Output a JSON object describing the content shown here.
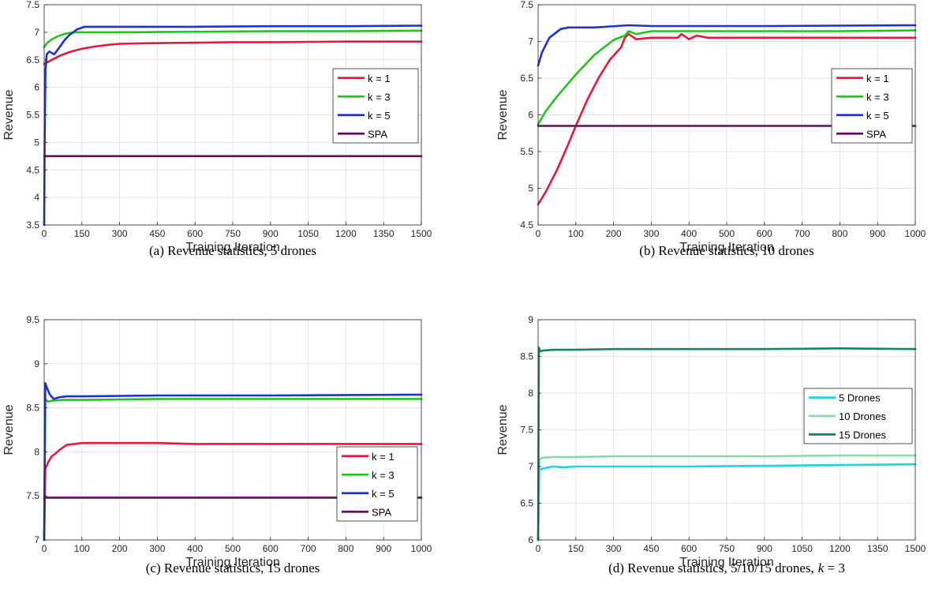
{
  "chart_data": [
    {
      "type": "line",
      "caption": "(a) Revenue statistics, 5 drones",
      "xlabel": "Training Iteration",
      "ylabel": "Revenue",
      "xlim": [
        0,
        1500
      ],
      "ylim": [
        3.5,
        7.5
      ],
      "xticks": [
        0,
        150,
        300,
        450,
        600,
        750,
        900,
        1050,
        1200,
        1350,
        1500
      ],
      "yticks": [
        3.5,
        4,
        4.5,
        5,
        5.5,
        6,
        6.5,
        7,
        7.5
      ],
      "grid": true,
      "legend_position": "right",
      "series": [
        {
          "name": "k = 1",
          "color": "#e8173c",
          "x": [
            0,
            30,
            60,
            100,
            150,
            200,
            250,
            300,
            400,
            600,
            750,
            900,
            1200,
            1500
          ],
          "y": [
            6.42,
            6.5,
            6.57,
            6.64,
            6.7,
            6.74,
            6.77,
            6.79,
            6.8,
            6.81,
            6.82,
            6.82,
            6.83,
            6.83
          ]
        },
        {
          "name": "k = 3",
          "color": "#22c51c",
          "x": [
            0,
            10,
            30,
            60,
            90,
            120,
            150,
            200,
            300,
            600,
            900,
            1200,
            1500
          ],
          "y": [
            6.73,
            6.8,
            6.87,
            6.94,
            6.98,
            7.0,
            7.0,
            7.0,
            7.0,
            7.01,
            7.02,
            7.02,
            7.03
          ]
        },
        {
          "name": "k = 5",
          "color": "#1f2fdc",
          "x": [
            0,
            2,
            5,
            10,
            20,
            40,
            60,
            80,
            100,
            130,
            160,
            200,
            300,
            600,
            900,
            1200,
            1500
          ],
          "y": [
            3.5,
            5.0,
            6.3,
            6.6,
            6.65,
            6.6,
            6.72,
            6.85,
            6.95,
            7.05,
            7.1,
            7.1,
            7.1,
            7.1,
            7.11,
            7.11,
            7.12
          ]
        },
        {
          "name": "SPA",
          "color": "#5e0f5e",
          "x": [
            0,
            1500
          ],
          "y": [
            4.75,
            4.75
          ]
        }
      ]
    },
    {
      "type": "line",
      "caption": "(b) Revenue statistics, 10 drones",
      "xlabel": "Training Iteration",
      "ylabel": "Revenue",
      "xlim": [
        0,
        1000
      ],
      "ylim": [
        4.5,
        7.5
      ],
      "xticks": [
        0,
        100,
        200,
        300,
        400,
        500,
        600,
        700,
        800,
        900,
        1000
      ],
      "yticks": [
        4.5,
        5,
        5.5,
        6,
        6.5,
        7,
        7.5
      ],
      "grid": true,
      "legend_position": "right",
      "series": [
        {
          "name": "k = 1",
          "color": "#e8173c",
          "x": [
            0,
            20,
            50,
            80,
            100,
            130,
            160,
            190,
            220,
            230,
            240,
            260,
            300,
            370,
            380,
            400,
            420,
            450,
            600,
            1000
          ],
          "y": [
            4.78,
            4.95,
            5.25,
            5.6,
            5.85,
            6.2,
            6.5,
            6.75,
            6.92,
            7.05,
            7.1,
            7.03,
            7.05,
            7.05,
            7.1,
            7.03,
            7.08,
            7.05,
            7.05,
            7.05
          ]
        },
        {
          "name": "k = 3",
          "color": "#22c51c",
          "x": [
            0,
            20,
            50,
            100,
            150,
            200,
            230,
            240,
            260,
            300,
            500,
            800,
            1000
          ],
          "y": [
            5.87,
            6.05,
            6.25,
            6.55,
            6.82,
            7.02,
            7.08,
            7.14,
            7.1,
            7.14,
            7.14,
            7.14,
            7.15
          ]
        },
        {
          "name": "k = 5",
          "color": "#1f2fdc",
          "x": [
            0,
            10,
            30,
            60,
            80,
            100,
            150,
            240,
            300,
            600,
            1000
          ],
          "y": [
            6.67,
            6.85,
            7.05,
            7.17,
            7.19,
            7.19,
            7.19,
            7.22,
            7.21,
            7.21,
            7.22
          ]
        },
        {
          "name": "SPA",
          "color": "#5e0f5e",
          "x": [
            0,
            1000
          ],
          "y": [
            5.85,
            5.85
          ]
        }
      ]
    },
    {
      "type": "line",
      "caption": "(c) Revenue statistics, 15 drones",
      "xlabel": "Training Iteration",
      "ylabel": "Revenue",
      "xlim": [
        0,
        1000
      ],
      "ylim": [
        7,
        9.5
      ],
      "xticks": [
        0,
        100,
        200,
        300,
        400,
        500,
        600,
        700,
        800,
        900,
        1000
      ],
      "yticks": [
        7,
        7.5,
        8,
        8.5,
        9,
        9.5
      ],
      "grid": true,
      "legend_position": "bottom-right",
      "series": [
        {
          "name": "k = 1",
          "color": "#e8173c",
          "x": [
            0,
            3,
            10,
            20,
            30,
            40,
            50,
            60,
            80,
            100,
            150,
            200,
            300,
            400,
            500,
            700,
            1000
          ],
          "y": [
            7.0,
            7.8,
            7.88,
            7.95,
            7.98,
            8.02,
            8.05,
            8.08,
            8.09,
            8.1,
            8.1,
            8.1,
            8.1,
            8.09,
            8.09,
            8.09,
            8.09
          ]
        },
        {
          "name": "k = 3",
          "color": "#22c51c",
          "x": [
            0,
            3,
            10,
            20,
            50,
            100,
            300,
            600,
            1000
          ],
          "y": [
            7.0,
            8.6,
            8.57,
            8.58,
            8.59,
            8.59,
            8.6,
            8.6,
            8.6
          ]
        },
        {
          "name": "k = 5",
          "color": "#1f2fdc",
          "x": [
            0,
            3,
            8,
            15,
            25,
            40,
            60,
            100,
            300,
            600,
            1000
          ],
          "y": [
            7.0,
            8.78,
            8.72,
            8.65,
            8.6,
            8.62,
            8.63,
            8.63,
            8.64,
            8.64,
            8.65
          ]
        },
        {
          "name": "SPA",
          "color": "#5e0f5e",
          "x": [
            0,
            1000
          ],
          "y": [
            7.48,
            7.48
          ]
        }
      ]
    },
    {
      "type": "line",
      "caption": "(d) Revenue statistics, 5/10/15 drones,",
      "caption_k": "k",
      "caption_k_tail": " = 3",
      "xlabel": "Training Iteration",
      "ylabel": "Revenue",
      "xlim": [
        0,
        1500
      ],
      "ylim": [
        6,
        9
      ],
      "xticks": [
        0,
        150,
        300,
        450,
        600,
        750,
        900,
        1050,
        1200,
        1350,
        1500
      ],
      "yticks": [
        6,
        6.5,
        7,
        7.5,
        8,
        8.5,
        9
      ],
      "grid": true,
      "legend_position": "right",
      "series": [
        {
          "name": "5 Drones",
          "color": "#1fd3e2",
          "x": [
            0,
            5,
            15,
            30,
            60,
            100,
            150,
            300,
            600,
            900,
            1200,
            1500
          ],
          "y": [
            6.0,
            6.95,
            6.97,
            6.98,
            7.0,
            6.99,
            7.0,
            7.0,
            7.0,
            7.01,
            7.02,
            7.03
          ]
        },
        {
          "name": "10 Drones",
          "color": "#8ad9a6",
          "x": [
            0,
            5,
            20,
            60,
            150,
            300,
            600,
            900,
            1200,
            1500
          ],
          "y": [
            6.0,
            7.1,
            7.12,
            7.13,
            7.13,
            7.14,
            7.14,
            7.14,
            7.15,
            7.15
          ]
        },
        {
          "name": "15 Drones",
          "color": "#0c8a5a",
          "x": [
            0,
            3,
            8,
            20,
            60,
            150,
            300,
            600,
            900,
            1200,
            1500
          ],
          "y": [
            6.0,
            8.62,
            8.57,
            8.58,
            8.59,
            8.59,
            8.6,
            8.6,
            8.6,
            8.61,
            8.6
          ]
        }
      ]
    }
  ]
}
